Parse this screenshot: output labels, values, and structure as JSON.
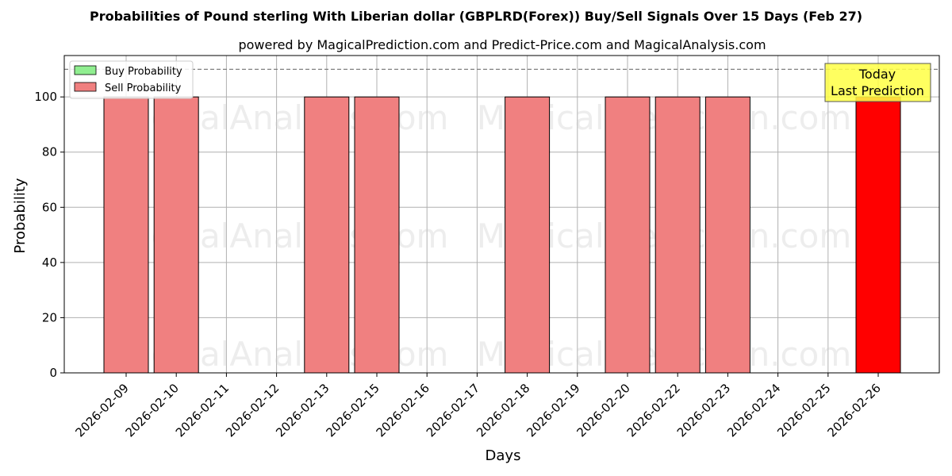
{
  "colors": {
    "buy": "#90ee90",
    "sell": "#f08080",
    "today": "#ff0000",
    "annotation_bg": "#ffff44",
    "grid": "#b0b0b0",
    "threshold": "#808080"
  },
  "legend": {
    "buy_label": "Buy Probability",
    "sell_label": "Sell Probability",
    "placement": "top-left"
  },
  "annotation": {
    "line1": "Today",
    "line2": "Last Prediction"
  },
  "watermarks": [
    "MagicalAnalysis.com",
    "MagicalPrediction.com"
  ],
  "chart_data": {
    "type": "bar",
    "title": "Probabilities of Pound sterling With Liberian dollar (GBPLRD(Forex)) Buy/Sell Signals Over 15 Days (Feb 27)",
    "subtitle": "powered by MagicalPrediction.com and Predict-Price.com and MagicalAnalysis.com",
    "xlabel": "Days",
    "ylabel": "Probability",
    "ylim": [
      0,
      115
    ],
    "yticks": [
      0,
      20,
      40,
      60,
      80,
      100
    ],
    "threshold_line": 110,
    "grid": true,
    "categories": [
      "2026-02-09",
      "2026-02-10",
      "2026-02-11",
      "2026-02-12",
      "2026-02-13",
      "2026-02-15",
      "2026-02-16",
      "2026-02-17",
      "2026-02-18",
      "2026-02-19",
      "2026-02-20",
      "2026-02-22",
      "2026-02-23",
      "2026-02-24",
      "2026-02-25",
      "2026-02-26"
    ],
    "series": [
      {
        "name": "Buy Probability",
        "values": [
          0,
          0,
          0,
          0,
          0,
          0,
          0,
          0,
          0,
          0,
          0,
          0,
          0,
          0,
          0,
          0
        ]
      },
      {
        "name": "Sell Probability",
        "values": [
          100,
          100,
          0,
          0,
          100,
          100,
          0,
          0,
          100,
          0,
          100,
          100,
          100,
          0,
          0,
          100
        ]
      }
    ],
    "highlight_category": "2026-02-26"
  }
}
